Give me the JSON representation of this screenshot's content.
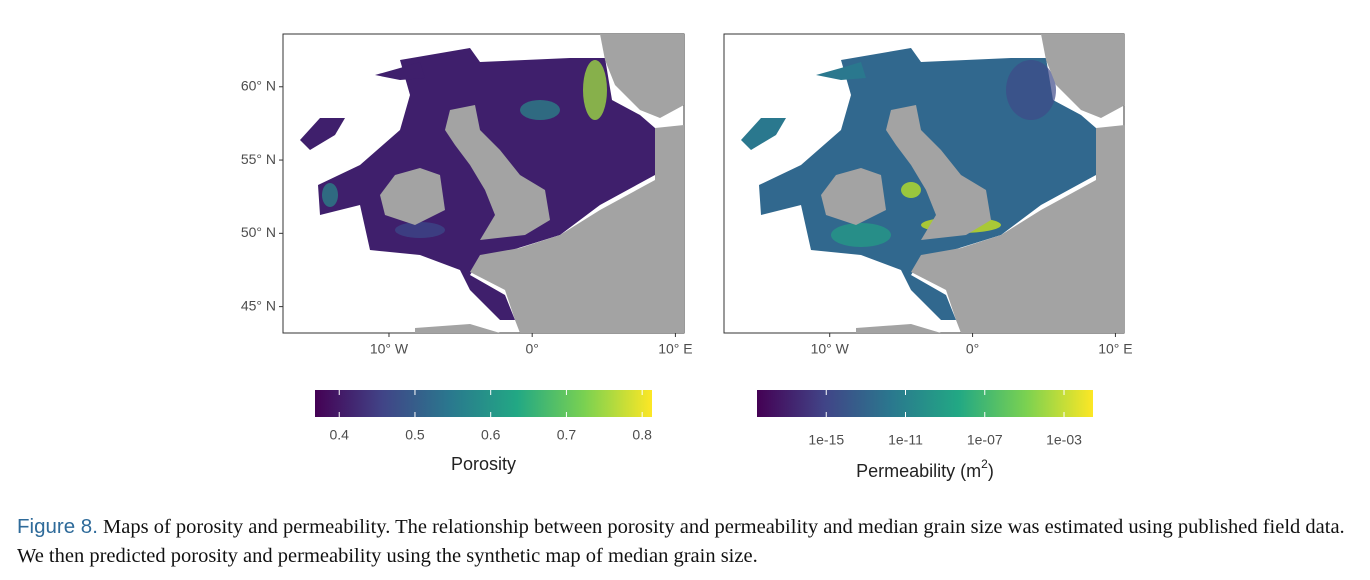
{
  "panels": [
    {
      "xlim": [
        -17.4,
        10.6
      ],
      "ylim": [
        43.2,
        63.6
      ],
      "xticks": [
        {
          "value": -10,
          "label": "10° W"
        },
        {
          "value": 0,
          "label": "0°"
        },
        {
          "value": 10,
          "label": "10° E"
        }
      ],
      "yticks": [
        {
          "value": 45,
          "label": "45° N"
        },
        {
          "value": 50,
          "label": "50° N"
        },
        {
          "value": 55,
          "label": "55° N"
        },
        {
          "value": 60,
          "label": "60° N"
        }
      ],
      "colorbar": {
        "title": "Porosity",
        "lim": [
          0.368,
          0.813
        ],
        "ticks": [
          0.4,
          0.5,
          0.6,
          0.7,
          0.8
        ],
        "log": false
      }
    },
    {
      "xlim": [
        -17.4,
        10.6
      ],
      "ylim": [
        43.2,
        63.6
      ],
      "xticks": [
        {
          "value": -10,
          "label": "10° W"
        },
        {
          "value": 0,
          "label": "0°"
        },
        {
          "value": 10,
          "label": "10° E"
        }
      ],
      "colorbar": {
        "title_parts": [
          "Permeability (m",
          "2",
          ")"
        ],
        "lim": [
          3.2e-19,
          0.029
        ],
        "ticks": [
          {
            "value": 1e-15,
            "label": "1e-15"
          },
          {
            "value": 1e-11,
            "label": "1e-11"
          },
          {
            "value": 1e-07,
            "label": "1e-07"
          },
          {
            "value": 0.001,
            "label": "1e-03"
          }
        ],
        "log": true
      }
    }
  ],
  "caption": {
    "label": "Figure 8.",
    "text": " Maps of porosity and permeability. The relationship between porosity and permeability and median grain size was estimated using published field data. We then predicted porosity and permeability using the synthetic map of median grain size."
  }
}
